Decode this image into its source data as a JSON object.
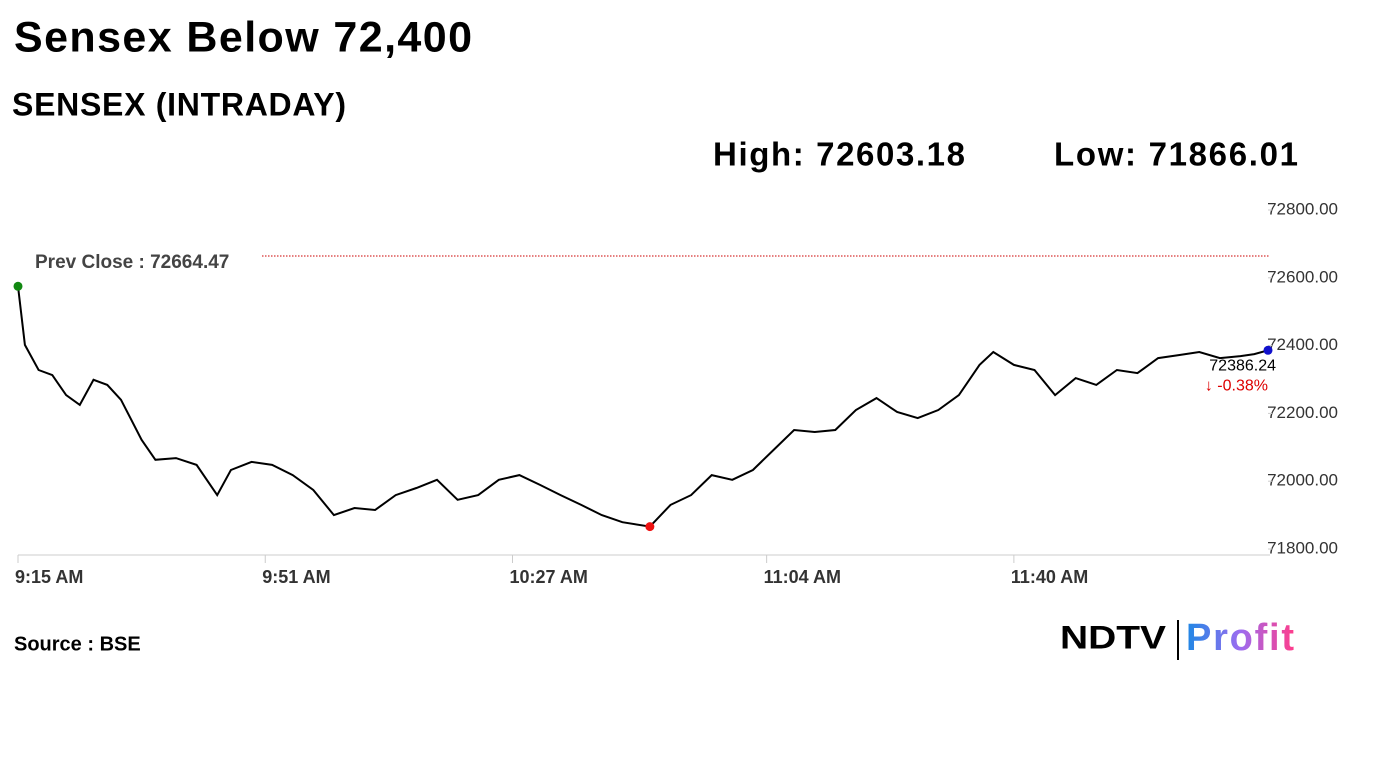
{
  "chart_data": {
    "type": "line",
    "title": "Sensex Below 72,400",
    "subtitle": "SENSEX (INTRADAY)",
    "high_label": "High: 72603.18",
    "low_label": "Low: 71866.01",
    "prev_close": 72664.47,
    "prev_close_label": "Prev Close : 72664.47",
    "change_label": "↓ -0.38%",
    "source": "Source : BSE",
    "logo": [
      "NDTV",
      "Profit"
    ],
    "x": [
      "9:15 AM",
      "9:16 AM",
      "9:18 AM",
      "9:20 AM",
      "9:22 AM",
      "9:24 AM",
      "9:26 AM",
      "9:28 AM",
      "9:30 AM",
      "9:33 AM",
      "9:35 AM",
      "9:38 AM",
      "9:41 AM",
      "9:44 AM",
      "9:46 AM",
      "9:49 AM",
      "9:52 AM",
      "9:55 AM",
      "9:58 AM",
      "10:01 AM",
      "10:04 AM",
      "10:07 AM",
      "10:10 AM",
      "10:13 AM",
      "10:16 AM",
      "10:19 AM",
      "10:22 AM",
      "10:25 AM",
      "10:28 AM",
      "10:31 AM",
      "10:34 AM",
      "10:37 AM",
      "10:40 AM",
      "10:43 AM",
      "10:47 AM",
      "10:50 AM",
      "10:53 AM",
      "10:56 AM",
      "10:59 AM",
      "11:02 AM",
      "11:05 AM",
      "11:08 AM",
      "11:11 AM",
      "11:14 AM",
      "11:17 AM",
      "11:20 AM",
      "11:23 AM",
      "11:26 AM",
      "11:29 AM",
      "11:32 AM",
      "11:35 AM",
      "11:37 AM",
      "11:40 AM",
      "11:43 AM",
      "11:46 AM",
      "11:49 AM",
      "11:52 AM",
      "11:55 AM",
      "11:58 AM",
      "12:01 PM",
      "12:04 PM",
      "12:07 PM",
      "12:10 PM",
      "12:13 PM",
      "12:15 PM",
      "12:17 PM"
    ],
    "series": [
      {
        "name": "SENSEX",
        "color": "#000000",
        "values": [
          72575,
          72402,
          72328,
          72313,
          72254,
          72225,
          72299,
          72284,
          72240,
          72122,
          72063,
          72068,
          72048,
          71959,
          72033,
          72057,
          72048,
          72018,
          71974,
          71900,
          71921,
          71915,
          71959,
          71980,
          72004,
          71945,
          71959,
          72004,
          72018,
          71989,
          71959,
          71930,
          71900,
          71879,
          71866.01,
          71930,
          71959,
          72018,
          72004,
          72033,
          72092,
          72151,
          72145,
          72151,
          72210,
          72245,
          72204,
          72186,
          72210,
          72254,
          72343,
          72381,
          72343,
          72328,
          72254,
          72304,
          72284,
          72328,
          72319,
          72363,
          72372,
          72381,
          72363,
          72369,
          72375,
          72386.24
        ]
      }
    ],
    "xticks": [
      "9:15 AM",
      "9:51 AM",
      "10:27 AM",
      "11:04 AM",
      "11:40 AM"
    ],
    "ylim": [
      71800,
      72800
    ],
    "yticks": [
      {
        "value": 71800,
        "label": "71800.00"
      },
      {
        "value": 72000,
        "label": "72000.00"
      },
      {
        "value": 72200,
        "label": "72200.00"
      },
      {
        "value": 72400,
        "label": "72400.00"
      },
      {
        "value": 72600,
        "label": "72600.00"
      },
      {
        "value": 72800,
        "label": "72800.00"
      }
    ],
    "prev_close_color": "#cc0000",
    "start_color": "#118811",
    "low_color": "#ee1111",
    "end_color": "#1111cc"
  }
}
